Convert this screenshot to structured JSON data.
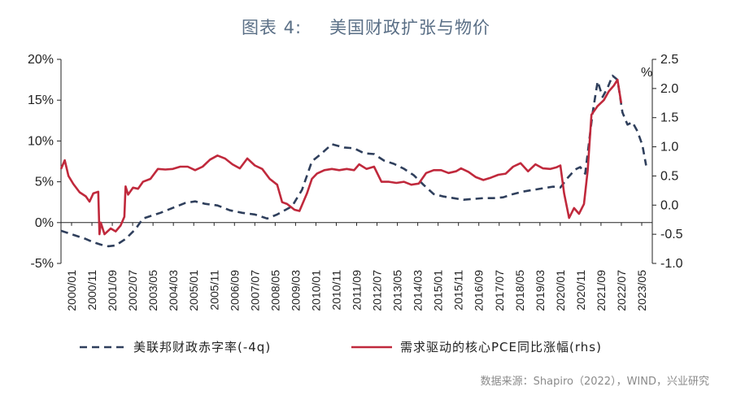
{
  "title": {
    "label": "图表 4:",
    "text": "美国财政扩张与物价"
  },
  "source": "数据来源：Shapiro（2022），WIND，兴业研究",
  "chart_data": {
    "type": "line",
    "x_ticks": [
      "2000/01",
      "2000/11",
      "2001/09",
      "2002/07",
      "2003/05",
      "2004/03",
      "2005/01",
      "2005/11",
      "2006/09",
      "2007/07",
      "2008/05",
      "2009/03",
      "2010/01",
      "2010/11",
      "2011/09",
      "2012/07",
      "2013/05",
      "2014/03",
      "2015/01",
      "2015/11",
      "2016/09",
      "2017/07",
      "2018/05",
      "2019/03",
      "2020/01",
      "2020/11",
      "2021/09",
      "2022/07",
      "2023/05"
    ],
    "y_left": {
      "ticks": [
        "20%",
        "15%",
        "10%",
        "5%",
        "0%",
        "-5%"
      ],
      "values": [
        20,
        15,
        10,
        5,
        0,
        -5
      ],
      "range": [
        -5,
        20
      ]
    },
    "y_right": {
      "ticks": [
        "2.5",
        "2.0",
        "1.5",
        "1.0",
        "0.5",
        "0.0",
        "-0.5",
        "-1.0"
      ],
      "values": [
        2.5,
        2.0,
        1.5,
        1.0,
        0.5,
        0.0,
        -0.5,
        -1.0
      ],
      "range": [
        -1.0,
        2.5
      ],
      "unit": "%"
    },
    "series": [
      {
        "name": "美联邦财政赤字率(-4q)",
        "axis": "left",
        "style": "dashed",
        "color": "#2f3f5c",
        "points": [
          [
            2000.0,
            -1.0
          ],
          [
            2000.5,
            -1.5
          ],
          [
            2001.0,
            -2.0
          ],
          [
            2001.3,
            -2.4
          ],
          [
            2001.6,
            -2.7
          ],
          [
            2001.9,
            -2.9
          ],
          [
            2002.2,
            -2.8
          ],
          [
            2002.6,
            -2.0
          ],
          [
            2003.0,
            -0.8
          ],
          [
            2003.3,
            0.5
          ],
          [
            2003.7,
            0.9
          ],
          [
            2004.0,
            1.2
          ],
          [
            2004.5,
            1.8
          ],
          [
            2005.0,
            2.4
          ],
          [
            2005.4,
            2.6
          ],
          [
            2005.8,
            2.3
          ],
          [
            2006.3,
            2.1
          ],
          [
            2006.8,
            1.5
          ],
          [
            2007.3,
            1.2
          ],
          [
            2007.8,
            1.0
          ],
          [
            2008.3,
            0.5
          ],
          [
            2008.7,
            1.0
          ],
          [
            2009.0,
            1.5
          ],
          [
            2009.3,
            2.0
          ],
          [
            2009.7,
            4.0
          ],
          [
            2010.1,
            7.5
          ],
          [
            2010.5,
            8.5
          ],
          [
            2010.9,
            9.6
          ],
          [
            2011.4,
            9.2
          ],
          [
            2011.8,
            9.1
          ],
          [
            2012.2,
            8.5
          ],
          [
            2012.6,
            8.4
          ],
          [
            2013.0,
            7.6
          ],
          [
            2013.4,
            7.2
          ],
          [
            2013.8,
            6.6
          ],
          [
            2014.2,
            5.8
          ],
          [
            2014.6,
            4.6
          ],
          [
            2015.0,
            3.5
          ],
          [
            2015.4,
            3.2
          ],
          [
            2015.8,
            3.0
          ],
          [
            2016.2,
            2.8
          ],
          [
            2016.6,
            2.9
          ],
          [
            2017.0,
            3.0
          ],
          [
            2017.4,
            3.0
          ],
          [
            2017.8,
            3.1
          ],
          [
            2018.2,
            3.5
          ],
          [
            2018.6,
            3.8
          ],
          [
            2019.0,
            4.0
          ],
          [
            2019.4,
            4.2
          ],
          [
            2019.8,
            4.4
          ],
          [
            2020.1,
            4.3
          ],
          [
            2020.4,
            5.5
          ],
          [
            2020.7,
            6.5
          ],
          [
            2020.9,
            6.8
          ],
          [
            2021.1,
            6.0
          ],
          [
            2021.4,
            13.5
          ],
          [
            2021.6,
            17.3
          ],
          [
            2021.8,
            15.4
          ],
          [
            2022.0,
            16.5
          ],
          [
            2022.2,
            18.0
          ],
          [
            2022.4,
            17.5
          ],
          [
            2022.6,
            13.5
          ],
          [
            2022.8,
            12.0
          ],
          [
            2023.0,
            12.3
          ],
          [
            2023.2,
            11.2
          ],
          [
            2023.4,
            9.5
          ],
          [
            2023.55,
            7.0
          ]
        ]
      },
      {
        "name": "需求驱动的核心PCE同比涨幅(rhs)",
        "axis": "right",
        "style": "solid",
        "color": "#c0293c",
        "points": [
          [
            2000.0,
            0.62
          ],
          [
            2000.15,
            0.77
          ],
          [
            2000.3,
            0.5
          ],
          [
            2000.5,
            0.36
          ],
          [
            2000.75,
            0.22
          ],
          [
            2001.0,
            0.15
          ],
          [
            2001.15,
            0.06
          ],
          [
            2001.3,
            0.2
          ],
          [
            2001.5,
            0.23
          ],
          [
            2001.55,
            -0.5
          ],
          [
            2001.6,
            -0.3
          ],
          [
            2001.75,
            -0.5
          ],
          [
            2002.0,
            -0.4
          ],
          [
            2002.2,
            -0.45
          ],
          [
            2002.4,
            -0.35
          ],
          [
            2002.55,
            -0.2
          ],
          [
            2002.6,
            0.32
          ],
          [
            2002.7,
            0.18
          ],
          [
            2002.9,
            0.3
          ],
          [
            2003.1,
            0.28
          ],
          [
            2003.3,
            0.4
          ],
          [
            2003.6,
            0.45
          ],
          [
            2003.9,
            0.62
          ],
          [
            2004.2,
            0.61
          ],
          [
            2004.5,
            0.62
          ],
          [
            2004.8,
            0.66
          ],
          [
            2005.1,
            0.66
          ],
          [
            2005.4,
            0.6
          ],
          [
            2005.7,
            0.66
          ],
          [
            2006.0,
            0.78
          ],
          [
            2006.3,
            0.85
          ],
          [
            2006.6,
            0.8
          ],
          [
            2006.9,
            0.7
          ],
          [
            2007.2,
            0.63
          ],
          [
            2007.5,
            0.8
          ],
          [
            2007.8,
            0.68
          ],
          [
            2008.1,
            0.62
          ],
          [
            2008.4,
            0.45
          ],
          [
            2008.7,
            0.35
          ],
          [
            2008.9,
            0.05
          ],
          [
            2009.1,
            0.02
          ],
          [
            2009.4,
            -0.08
          ],
          [
            2009.6,
            -0.1
          ],
          [
            2009.9,
            0.2
          ],
          [
            2010.1,
            0.45
          ],
          [
            2010.3,
            0.54
          ],
          [
            2010.6,
            0.6
          ],
          [
            2010.9,
            0.62
          ],
          [
            2011.2,
            0.6
          ],
          [
            2011.5,
            0.62
          ],
          [
            2011.8,
            0.6
          ],
          [
            2012.0,
            0.7
          ],
          [
            2012.3,
            0.62
          ],
          [
            2012.6,
            0.66
          ],
          [
            2012.9,
            0.4
          ],
          [
            2013.2,
            0.4
          ],
          [
            2013.5,
            0.38
          ],
          [
            2013.8,
            0.4
          ],
          [
            2014.1,
            0.35
          ],
          [
            2014.4,
            0.37
          ],
          [
            2014.7,
            0.55
          ],
          [
            2015.0,
            0.6
          ],
          [
            2015.3,
            0.6
          ],
          [
            2015.6,
            0.55
          ],
          [
            2015.9,
            0.58
          ],
          [
            2016.1,
            0.63
          ],
          [
            2016.4,
            0.57
          ],
          [
            2016.7,
            0.48
          ],
          [
            2017.0,
            0.43
          ],
          [
            2017.3,
            0.47
          ],
          [
            2017.6,
            0.52
          ],
          [
            2017.9,
            0.54
          ],
          [
            2018.2,
            0.66
          ],
          [
            2018.5,
            0.72
          ],
          [
            2018.8,
            0.58
          ],
          [
            2019.1,
            0.7
          ],
          [
            2019.4,
            0.63
          ],
          [
            2019.7,
            0.62
          ],
          [
            2019.95,
            0.65
          ],
          [
            2020.1,
            0.68
          ],
          [
            2020.25,
            0.2
          ],
          [
            2020.45,
            -0.22
          ],
          [
            2020.65,
            -0.05
          ],
          [
            2020.85,
            -0.15
          ],
          [
            2021.05,
            0.02
          ],
          [
            2021.2,
            0.6
          ],
          [
            2021.35,
            1.55
          ],
          [
            2021.6,
            1.7
          ],
          [
            2021.85,
            1.8
          ],
          [
            2022.05,
            1.95
          ],
          [
            2022.25,
            2.05
          ],
          [
            2022.4,
            2.15
          ],
          [
            2022.55,
            1.75
          ]
        ]
      }
    ]
  },
  "legend": [
    {
      "label": "美联邦财政赤字率(-4q)",
      "style": "dashed",
      "color": "#2f3f5c"
    },
    {
      "label": "需求驱动的核心PCE同比涨幅(rhs)",
      "style": "solid",
      "color": "#c0293c"
    }
  ],
  "colors": {
    "title": "#5a6f86",
    "axis": "#222222",
    "deficit": "#2f3f5c",
    "pce": "#c0293c"
  }
}
